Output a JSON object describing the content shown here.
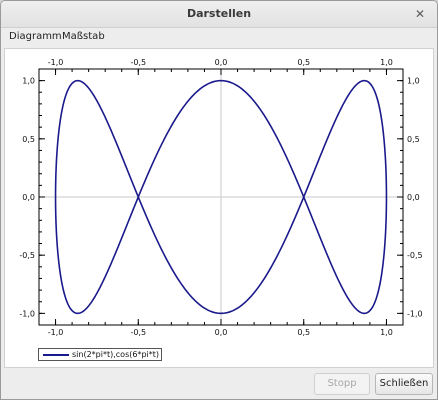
{
  "window": {
    "title": "Darstellen",
    "close_icon": "close-icon"
  },
  "menu": {
    "items": [
      "Diagramm",
      "Maßstab"
    ]
  },
  "chart_data": {
    "type": "line",
    "parametric": true,
    "x_expression": "sin(2*pi*t)",
    "y_expression": "cos(6*pi*t)",
    "t_range": [
      0,
      1
    ],
    "xlim": [
      -1.1,
      1.1
    ],
    "ylim": [
      -1.1,
      1.1
    ],
    "x_ticks": [
      "-1,0",
      "-0,5",
      "0,0",
      "0,5",
      "1,0"
    ],
    "x_tick_values": [
      -1.0,
      -0.5,
      0.0,
      0.5,
      1.0
    ],
    "y_ticks": [
      "1,0",
      "0,5",
      "0,0",
      "-0,5",
      "-1,0"
    ],
    "y_tick_values": [
      1.0,
      0.5,
      0.0,
      -0.5,
      -1.0
    ],
    "grid": "zero-lines",
    "series_color": "#1a1a8c",
    "legend_position": "bottom-left",
    "series": [
      {
        "name": "sin(2*pi*t),cos(6*pi*t)"
      }
    ]
  },
  "footer": {
    "stop_label": "Stopp",
    "close_label": "Schließen"
  }
}
